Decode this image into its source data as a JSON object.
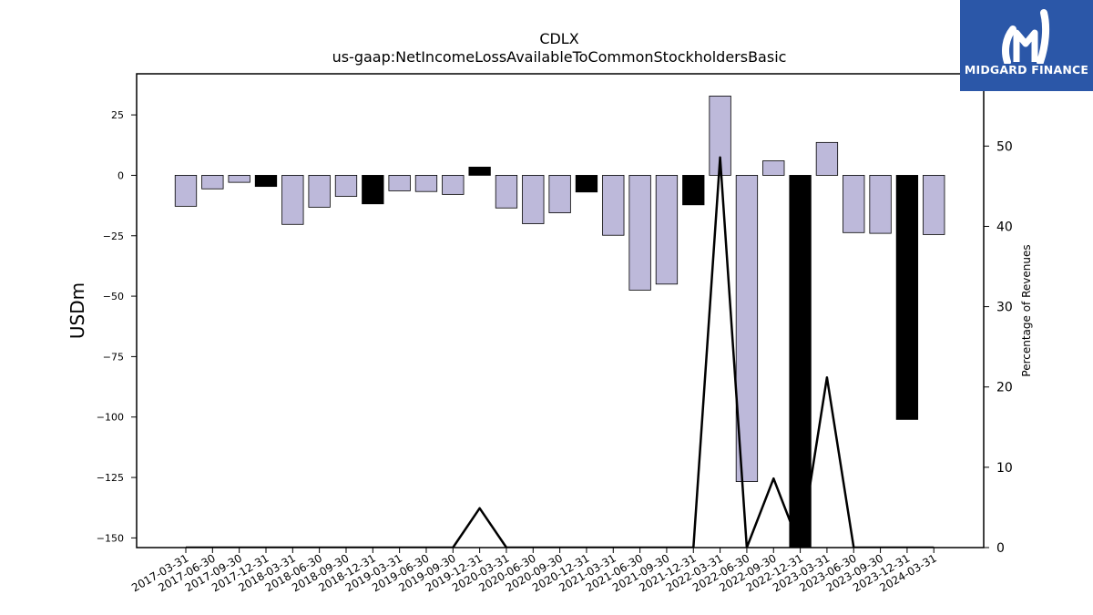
{
  "logo": {
    "text": "MIDGARD FINANCE",
    "background": "#2b57a8"
  },
  "chart_data": {
    "type": "bar",
    "title": "CDLX",
    "subtitle": "us-gaap:NetIncomeLossAvailableToCommonStockholdersBasic",
    "ylabel": "USDm",
    "y2label": "Percentage of Revenues",
    "ylim": [
      -154,
      42
    ],
    "y2lim": [
      0,
      59
    ],
    "yticks": [
      25,
      0,
      -25,
      -50,
      -75,
      -100,
      -125,
      -150
    ],
    "y2ticks": [
      0,
      10,
      20,
      30,
      40,
      50
    ],
    "grid": false,
    "categories": [
      "2017-03-31",
      "2017-06-30",
      "2017-09-30",
      "2017-12-31",
      "2018-03-31",
      "2018-06-30",
      "2018-09-30",
      "2018-12-31",
      "2019-03-31",
      "2019-06-30",
      "2019-09-30",
      "2019-12-31",
      "2020-03-31",
      "2020-06-30",
      "2020-09-30",
      "2020-12-31",
      "2021-03-31",
      "2021-06-30",
      "2021-09-30",
      "2021-12-31",
      "2022-03-31",
      "2022-06-30",
      "2022-09-30",
      "2022-12-31",
      "2023-03-31",
      "2023-06-30",
      "2023-09-30",
      "2023-12-31",
      "2024-03-31"
    ],
    "series": [
      {
        "type": "bar",
        "values": [
          -12.8,
          -5.6,
          -2.9,
          -4.6,
          -20.3,
          -13.2,
          -8.7,
          -11.8,
          -6.4,
          -6.7,
          -7.9,
          3.4,
          -13.5,
          -20.0,
          -15.5,
          -6.9,
          -24.8,
          -47.5,
          -45.0,
          -12.2,
          32.8,
          -126.7,
          6.0,
          -155.0,
          13.6,
          -23.7,
          -24.0,
          -101.0,
          -24.5
        ],
        "quarter_end": [
          false,
          false,
          false,
          true,
          false,
          false,
          false,
          true,
          false,
          false,
          false,
          true,
          false,
          false,
          false,
          true,
          false,
          false,
          false,
          true,
          false,
          false,
          false,
          true,
          false,
          false,
          false,
          true,
          false
        ]
      },
      {
        "type": "line",
        "axis": "right",
        "values": [
          0,
          0,
          0,
          0,
          0,
          0,
          0,
          0,
          0,
          0,
          0,
          4.9,
          0,
          0,
          0,
          0,
          0,
          0,
          0,
          0,
          48.6,
          0,
          8.6,
          0,
          21.2,
          0,
          0,
          0,
          0
        ]
      }
    ],
    "colors": {
      "bar": "#bdb9da",
      "bar_quarter_end": "#000000",
      "line": "#000000",
      "edge": "#000000"
    }
  }
}
